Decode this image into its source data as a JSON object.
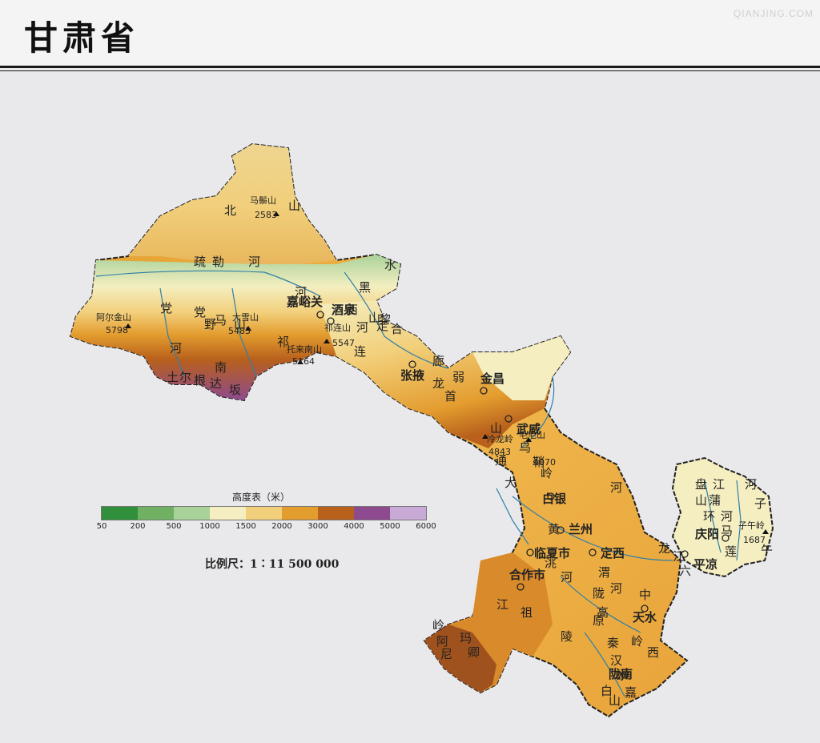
{
  "title": "甘肃省",
  "watermark": "QIANJING.COM",
  "legend": {
    "title": "高度表（米）",
    "colors": [
      "#2f8f3a",
      "#6fb062",
      "#a9d29a",
      "#f4eec0",
      "#f2cf7a",
      "#e39c2e",
      "#b8601c",
      "#8e4a8f",
      "#c9a9d6"
    ],
    "ticks": [
      "50",
      "200",
      "500",
      "1000",
      "1500",
      "2000",
      "3000",
      "4000",
      "5000",
      "6000"
    ]
  },
  "scale": "比例尺：1∶11 500 000",
  "cities": [
    {
      "name": "嘉峪关"
    },
    {
      "name": "酒泉"
    },
    {
      "name": "张掖"
    },
    {
      "name": "金昌"
    },
    {
      "name": "武威"
    },
    {
      "name": "白银"
    },
    {
      "name": "兰州"
    },
    {
      "name": "临夏市"
    },
    {
      "name": "定西"
    },
    {
      "name": "合作市"
    },
    {
      "name": "天水"
    },
    {
      "name": "陇南"
    },
    {
      "name": "平凉"
    },
    {
      "name": "庆阳"
    }
  ],
  "peaks": [
    {
      "name": "马鬃山",
      "elev": "2583"
    },
    {
      "name": "阿尔金山",
      "elev": "5798"
    },
    {
      "name": "大雪山",
      "elev": "5483"
    },
    {
      "name": "祁连山",
      "elev": "5547"
    },
    {
      "name": "托来南山",
      "elev": "5164"
    },
    {
      "name": "冷龙岭",
      "elev": "4843"
    },
    {
      "name": "毛毛山",
      "elev": "4070"
    },
    {
      "name": "子午岭",
      "elev": "1687"
    }
  ],
  "features": [
    "北",
    "山",
    "疏",
    "勒",
    "河",
    "党",
    "河",
    "党",
    "野",
    "马",
    "山",
    "南",
    "土",
    "尔",
    "根",
    "达",
    "坂",
    "祁",
    "连",
    "河",
    "西",
    "走",
    "廊",
    "弱",
    "水",
    "黑",
    "河",
    "合",
    "黎",
    "山",
    "龙",
    "首",
    "山",
    "大",
    "通",
    "乌",
    "鞘",
    "岭",
    "黄",
    "河",
    "洮",
    "河",
    "渭",
    "河",
    "陇",
    "中",
    "高",
    "原",
    "秦",
    "岭",
    "西",
    "汉",
    "水",
    "白",
    "龙",
    "江",
    "六",
    "盘",
    "山",
    "环",
    "江",
    "蒲",
    "河",
    "马",
    "莲",
    "河",
    "子",
    "午",
    "岭",
    "阿",
    "尼",
    "玛",
    "卿",
    "山",
    "嘉",
    "陵",
    "江",
    "祖",
    "厉",
    "河"
  ]
}
